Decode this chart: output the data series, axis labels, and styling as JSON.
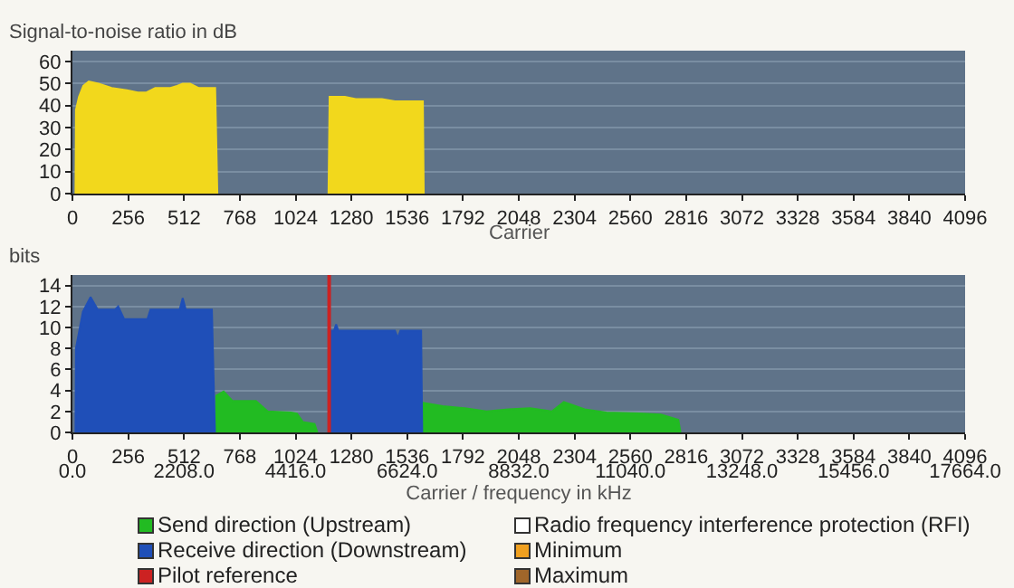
{
  "chart_data": [
    {
      "type": "area",
      "ylabel": "Signal-to-noise ratio in dB",
      "xlabel": "Carrier",
      "xlim": [
        0,
        4096
      ],
      "xticks": [
        0,
        256,
        512,
        768,
        1024,
        1280,
        1536,
        1792,
        2048,
        2304,
        2560,
        2816,
        3072,
        3328,
        3584,
        3840,
        4096
      ],
      "ylim": [
        0,
        65
      ],
      "yticks": [
        0,
        10,
        20,
        30,
        40,
        50,
        60
      ],
      "grid": "y",
      "legend": false,
      "series": [
        {
          "color": "#f2d81c",
          "x": [
            14,
            16,
            30,
            50,
            75,
            120,
            180,
            250,
            300,
            340,
            380,
            450,
            480,
            506,
            540,
            580,
            655,
            665,
            null,
            1175,
            1180,
            1200,
            1250,
            1300,
            1350,
            1420,
            1480,
            1530,
            1600,
            1608,
            1612
          ],
          "values": [
            0,
            38,
            44,
            49,
            51,
            50,
            48,
            47,
            46,
            46,
            48,
            48,
            49,
            50,
            50,
            48,
            48,
            0,
            null,
            0,
            44,
            44,
            44,
            43,
            43,
            43,
            42,
            42,
            42,
            42,
            0
          ]
        }
      ]
    },
    {
      "type": "area",
      "ylabel": "bits",
      "xlabel": "Carrier / frequency in kHz",
      "xlim": [
        0,
        4096
      ],
      "xticks": [
        0,
        256,
        512,
        768,
        1024,
        1280,
        1536,
        1792,
        2048,
        2304,
        2560,
        2816,
        3072,
        3328,
        3584,
        3840,
        4096
      ],
      "x2lim": [
        0,
        17664
      ],
      "x2ticks": [
        {
          "value": 0,
          "label": "0.0"
        },
        {
          "value": 2208,
          "label": "2208.0"
        },
        {
          "value": 4416,
          "label": "4416.0"
        },
        {
          "value": 6624,
          "label": "6624.0"
        },
        {
          "value": 8832,
          "label": "8832.0"
        },
        {
          "value": 11040,
          "label": "11040.0"
        },
        {
          "value": 13248,
          "label": "13248.0"
        },
        {
          "value": 15456,
          "label": "15456.0"
        },
        {
          "value": 17664,
          "label": "17664.0"
        }
      ],
      "ylim": [
        0,
        15
      ],
      "yticks": [
        0,
        2,
        4,
        6,
        8,
        10,
        12,
        14
      ],
      "grid": "y",
      "legend": "bottom",
      "series": [
        {
          "name": "Send direction (Upstream)",
          "color": "#22bb22",
          "x": [
            655,
            660,
            694,
            734,
            842,
            896,
            1003,
            1030,
            1057,
            1111,
            1124,
            null,
            1605,
            1612,
            1700,
            1800,
            1900,
            2000,
            2100,
            2200,
            2255,
            2350,
            2450,
            2600,
            2700,
            2780,
            2790
          ],
          "values": [
            0,
            3.5,
            3.9,
            3,
            3,
            2,
            1.9,
            1.8,
            1,
            0.8,
            0,
            null,
            0,
            2.8,
            2.5,
            2.3,
            2,
            2.2,
            2.3,
            2,
            2.9,
            2.2,
            1.9,
            1.8,
            1.7,
            1.2,
            0
          ]
        },
        {
          "name": "Radio frequency interference protection (RFI)",
          "color": "#ffffff"
        },
        {
          "name": "Receive direction (Downstream)",
          "color": "#1f4fb8",
          "x": [
            14,
            16,
            48,
            83,
            116,
            196,
            210,
            237,
            344,
            358,
            492,
            506,
            520,
            640,
            654,
            null,
            1178,
            1180,
            1200,
            1210,
            1220,
            1480,
            1493,
            1505,
            1600,
            1605
          ],
          "values": [
            0,
            8,
            11.5,
            12.9,
            11.7,
            11.7,
            12,
            10.8,
            10.8,
            11.7,
            11.7,
            12.8,
            11.7,
            11.7,
            0,
            null,
            0,
            9.7,
            9.7,
            10.3,
            9.7,
            9.7,
            9,
            9.7,
            9.7,
            0
          ]
        },
        {
          "name": "Minimum",
          "color": "#f0a020"
        },
        {
          "name": "Maximum",
          "color": "#a0662a"
        }
      ],
      "ref_lines": [
        {
          "axis": "x",
          "value": 1178,
          "label": "Pilot reference",
          "color": "#cc2222"
        }
      ]
    }
  ]
}
